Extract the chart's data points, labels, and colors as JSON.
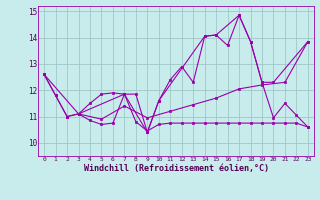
{
  "xlabel": "Windchill (Refroidissement éolien,°C)",
  "bg_color": "#c8ecec",
  "grid_color": "#a0c8c8",
  "line_color": "#9900aa",
  "xlim": [
    -0.5,
    23.5
  ],
  "ylim": [
    9.5,
    15.2
  ],
  "yticks": [
    10,
    11,
    12,
    13,
    14,
    15
  ],
  "xticks": [
    0,
    1,
    2,
    3,
    4,
    5,
    6,
    7,
    8,
    9,
    10,
    11,
    12,
    13,
    14,
    15,
    16,
    17,
    18,
    19,
    20,
    21,
    22,
    23
  ],
  "lines": [
    {
      "x": [
        0,
        1,
        2,
        3,
        4,
        5,
        6,
        7,
        8,
        9,
        10,
        11,
        12,
        13,
        14,
        15,
        16,
        17,
        18,
        19,
        20,
        21,
        22,
        23
      ],
      "y": [
        12.6,
        11.8,
        11.0,
        11.1,
        11.5,
        11.85,
        11.9,
        11.85,
        11.85,
        10.4,
        11.6,
        12.4,
        12.9,
        12.3,
        14.05,
        14.1,
        13.7,
        14.85,
        13.85,
        12.3,
        10.95,
        11.5,
        11.05,
        10.6
      ]
    },
    {
      "x": [
        0,
        1,
        2,
        3,
        4,
        5,
        6,
        7,
        8,
        9,
        10,
        11,
        12,
        13,
        14,
        15,
        16,
        17,
        18,
        19,
        20,
        21,
        22,
        23
      ],
      "y": [
        12.6,
        11.8,
        11.0,
        11.1,
        10.85,
        10.7,
        10.75,
        11.85,
        10.8,
        10.45,
        10.7,
        10.75,
        10.75,
        10.75,
        10.75,
        10.75,
        10.75,
        10.75,
        10.75,
        10.75,
        10.75,
        10.75,
        10.75,
        10.6
      ]
    },
    {
      "x": [
        3,
        7,
        9,
        10,
        14,
        15,
        17,
        18,
        19,
        20,
        23
      ],
      "y": [
        11.1,
        11.85,
        10.4,
        11.6,
        14.05,
        14.1,
        14.85,
        13.85,
        12.3,
        12.3,
        13.85
      ]
    },
    {
      "x": [
        0,
        3,
        5,
        7,
        9,
        11,
        13,
        15,
        17,
        19,
        21,
        23
      ],
      "y": [
        12.6,
        11.1,
        10.9,
        11.4,
        10.95,
        11.2,
        11.45,
        11.7,
        12.05,
        12.2,
        12.3,
        13.85
      ]
    }
  ]
}
